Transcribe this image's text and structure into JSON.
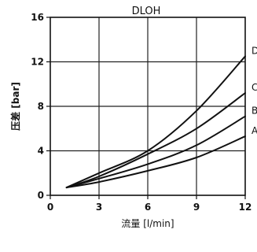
{
  "chart_data": {
    "type": "line",
    "title": "DLOH",
    "xlabel": "流量 [l/min]",
    "ylabel": "压差 [bar]",
    "xlim": [
      0,
      12
    ],
    "ylim": [
      0,
      16
    ],
    "xticks": [
      0,
      3,
      6,
      9,
      12
    ],
    "yticks": [
      0,
      4,
      8,
      12,
      16
    ],
    "grid": true,
    "legend": "inline-right",
    "series": [
      {
        "name": "A",
        "x": [
          1,
          3,
          6,
          9,
          12
        ],
        "y": [
          0.7,
          1.2,
          2.2,
          3.4,
          5.3
        ]
      },
      {
        "name": "B",
        "x": [
          1,
          3,
          6,
          9,
          12
        ],
        "y": [
          0.7,
          1.5,
          2.8,
          4.5,
          7.1
        ]
      },
      {
        "name": "C",
        "x": [
          1,
          3,
          6,
          9,
          12
        ],
        "y": [
          0.7,
          1.7,
          3.7,
          6.0,
          9.2
        ]
      },
      {
        "name": "D",
        "x": [
          1,
          3,
          6,
          9,
          12
        ],
        "y": [
          0.7,
          2.0,
          4.0,
          7.6,
          12.5
        ]
      }
    ]
  }
}
